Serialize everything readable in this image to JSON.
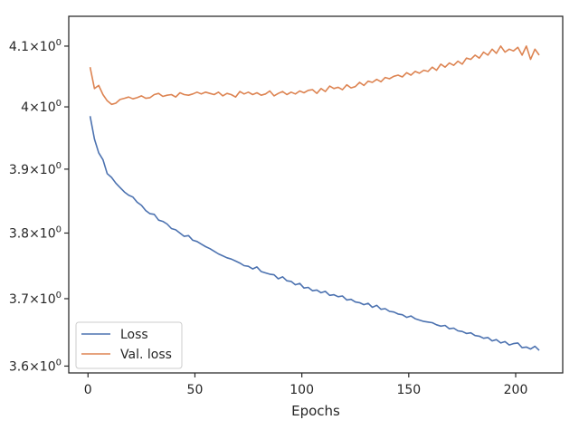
{
  "chart_data": {
    "type": "line",
    "xlabel": "Epochs",
    "ylabel": "",
    "y_scale": "log",
    "xlim": [
      -9,
      222
    ],
    "ylim": [
      3.59,
      4.15
    ],
    "x_ticks": [
      0,
      50,
      100,
      150,
      200
    ],
    "x_tick_labels": [
      "0",
      "50",
      "100",
      "150",
      "200"
    ],
    "y_ticks": [
      3.6,
      3.7,
      3.8,
      3.9,
      4.0,
      4.1
    ],
    "y_tick_labels": [
      {
        "base": "3.6",
        "times": "×",
        "pow": "10",
        "exp": "0"
      },
      {
        "base": "3.7",
        "times": "×",
        "pow": "10",
        "exp": "0"
      },
      {
        "base": "3.8",
        "times": "×",
        "pow": "10",
        "exp": "0"
      },
      {
        "base": "3.9",
        "times": "×",
        "pow": "10",
        "exp": "0"
      },
      {
        "base": "4",
        "times": "×",
        "pow": "10",
        "exp": "0"
      },
      {
        "base": "4.1",
        "times": "×",
        "pow": "10",
        "exp": "0"
      }
    ],
    "grid": false,
    "legend_position": "bottom-left",
    "series": [
      {
        "name": "Loss",
        "color": "#4c72b0",
        "x": [
          1,
          3,
          5,
          7,
          9,
          11,
          13,
          15,
          17,
          19,
          21,
          23,
          25,
          27,
          29,
          31,
          33,
          35,
          37,
          39,
          41,
          43,
          45,
          47,
          49,
          51,
          53,
          55,
          57,
          59,
          61,
          63,
          65,
          67,
          69,
          71,
          73,
          75,
          77,
          79,
          81,
          83,
          85,
          87,
          89,
          91,
          93,
          95,
          97,
          99,
          101,
          103,
          105,
          107,
          109,
          111,
          113,
          115,
          117,
          119,
          121,
          123,
          125,
          127,
          129,
          131,
          133,
          135,
          137,
          139,
          141,
          143,
          145,
          147,
          149,
          151,
          153,
          155,
          157,
          159,
          161,
          163,
          165,
          167,
          169,
          171,
          173,
          175,
          177,
          179,
          181,
          183,
          185,
          187,
          189,
          191,
          193,
          195,
          197,
          199,
          201,
          203,
          205,
          207,
          209,
          211
        ],
        "y": [
          3.985,
          3.948,
          3.926,
          3.915,
          3.893,
          3.887,
          3.878,
          3.871,
          3.864,
          3.859,
          3.856,
          3.848,
          3.843,
          3.835,
          3.83,
          3.829,
          3.82,
          3.818,
          3.814,
          3.807,
          3.805,
          3.8,
          3.795,
          3.796,
          3.789,
          3.787,
          3.783,
          3.779,
          3.776,
          3.772,
          3.768,
          3.765,
          3.762,
          3.76,
          3.757,
          3.754,
          3.75,
          3.749,
          3.745,
          3.748,
          3.741,
          3.739,
          3.737,
          3.736,
          3.73,
          3.733,
          3.727,
          3.726,
          3.721,
          3.723,
          3.716,
          3.717,
          3.712,
          3.713,
          3.709,
          3.711,
          3.705,
          3.706,
          3.703,
          3.704,
          3.698,
          3.699,
          3.695,
          3.694,
          3.691,
          3.693,
          3.687,
          3.69,
          3.684,
          3.685,
          3.681,
          3.68,
          3.677,
          3.676,
          3.672,
          3.674,
          3.67,
          3.668,
          3.666,
          3.665,
          3.664,
          3.661,
          3.659,
          3.66,
          3.655,
          3.656,
          3.652,
          3.651,
          3.648,
          3.649,
          3.645,
          3.644,
          3.641,
          3.642,
          3.637,
          3.639,
          3.634,
          3.636,
          3.631,
          3.633,
          3.634,
          3.627,
          3.628,
          3.625,
          3.629,
          3.623
        ]
      },
      {
        "name": "Val. loss",
        "color": "#dd8452",
        "x": [
          1,
          3,
          5,
          7,
          9,
          11,
          13,
          15,
          17,
          19,
          21,
          23,
          25,
          27,
          29,
          31,
          33,
          35,
          37,
          39,
          41,
          43,
          45,
          47,
          49,
          51,
          53,
          55,
          57,
          59,
          61,
          63,
          65,
          67,
          69,
          71,
          73,
          75,
          77,
          79,
          81,
          83,
          85,
          87,
          89,
          91,
          93,
          95,
          97,
          99,
          101,
          103,
          105,
          107,
          109,
          111,
          113,
          115,
          117,
          119,
          121,
          123,
          125,
          127,
          129,
          131,
          133,
          135,
          137,
          139,
          141,
          143,
          145,
          147,
          149,
          151,
          153,
          155,
          157,
          159,
          161,
          163,
          165,
          167,
          169,
          171,
          173,
          175,
          177,
          179,
          181,
          183,
          185,
          187,
          189,
          191,
          193,
          195,
          197,
          199,
          201,
          203,
          205,
          207,
          209,
          211
        ],
        "y": [
          4.065,
          4.03,
          4.035,
          4.02,
          4.01,
          4.004,
          4.006,
          4.012,
          4.014,
          4.016,
          4.013,
          4.015,
          4.018,
          4.014,
          4.015,
          4.02,
          4.022,
          4.017,
          4.019,
          4.02,
          4.016,
          4.023,
          4.02,
          4.019,
          4.021,
          4.024,
          4.021,
          4.024,
          4.022,
          4.02,
          4.024,
          4.018,
          4.022,
          4.02,
          4.016,
          4.025,
          4.021,
          4.024,
          4.02,
          4.023,
          4.019,
          4.021,
          4.026,
          4.018,
          4.022,
          4.025,
          4.02,
          4.024,
          4.021,
          4.026,
          4.023,
          4.027,
          4.028,
          4.022,
          4.03,
          4.025,
          4.034,
          4.03,
          4.032,
          4.028,
          4.036,
          4.031,
          4.033,
          4.04,
          4.035,
          4.042,
          4.04,
          4.045,
          4.041,
          4.048,
          4.046,
          4.05,
          4.052,
          4.049,
          4.056,
          4.052,
          4.058,
          4.055,
          4.06,
          4.058,
          4.065,
          4.06,
          4.07,
          4.065,
          4.072,
          4.068,
          4.075,
          4.07,
          4.08,
          4.078,
          4.085,
          4.08,
          4.09,
          4.085,
          4.095,
          4.088,
          4.1,
          4.09,
          4.095,
          4.092,
          4.098,
          4.085,
          4.1,
          4.078,
          4.095,
          4.085
        ]
      }
    ]
  }
}
